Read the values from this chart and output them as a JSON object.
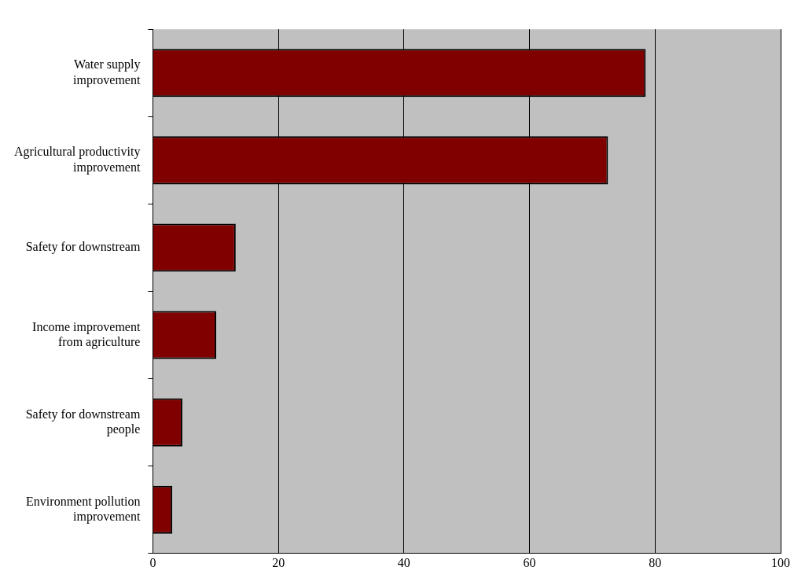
{
  "chart_data": {
    "type": "bar",
    "orientation": "horizontal",
    "categories": [
      "Water supply\nimprovement",
      "Agricultural productivity\nimprovement",
      "Safety for downstream",
      "Income improvement\nfrom agriculture",
      "Safety for downstream\npeople",
      "Environment pollution\nimprovement"
    ],
    "values": [
      78.5,
      72.5,
      13.2,
      10.1,
      4.7,
      3.1
    ],
    "color": "#800000",
    "xlim": [
      0,
      100
    ],
    "xticks": [
      0,
      20,
      40,
      60,
      80,
      100
    ],
    "grid": "x"
  }
}
